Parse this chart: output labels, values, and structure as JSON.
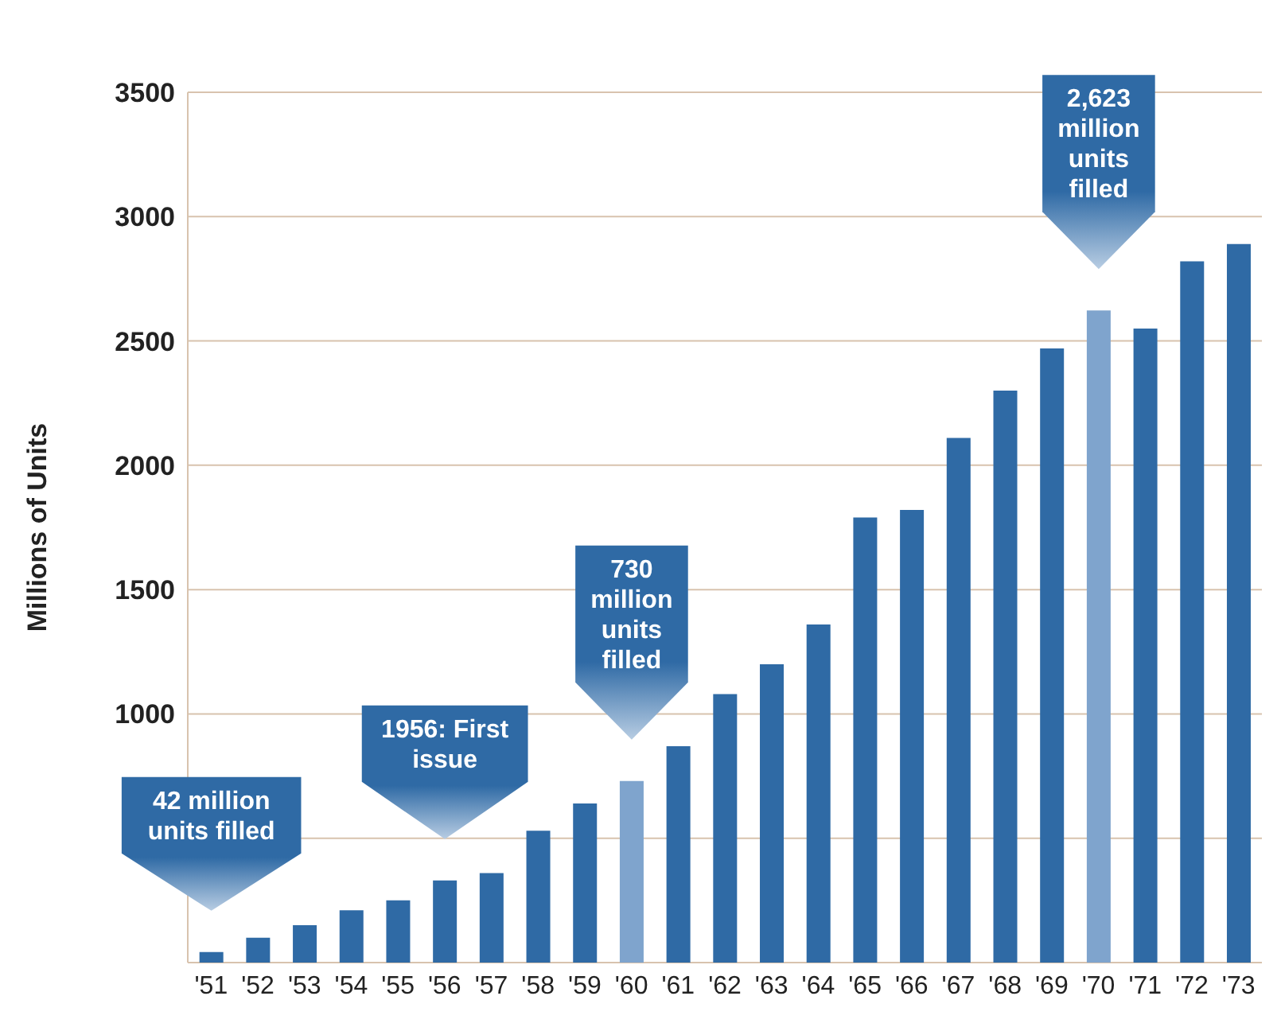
{
  "chart_data": {
    "type": "bar",
    "ylabel": "Millions of Units",
    "categories": [
      "'51",
      "'52",
      "'53",
      "'54",
      "'55",
      "'56",
      "'57",
      "'58",
      "'59",
      "'60",
      "'61",
      "'62",
      "'63",
      "'64",
      "'65",
      "'66",
      "'67",
      "'68",
      "'69",
      "'70",
      "'71",
      "'72",
      "'73"
    ],
    "values": [
      42,
      100,
      150,
      210,
      250,
      330,
      360,
      530,
      640,
      730,
      870,
      1080,
      1200,
      1360,
      1790,
      1820,
      2110,
      2300,
      2470,
      2623,
      2550,
      2820,
      2890
    ],
    "colors": [
      "#2f6aa5",
      "#2f6aa5",
      "#2f6aa5",
      "#2f6aa5",
      "#2f6aa5",
      "#2f6aa5",
      "#2f6aa5",
      "#2f6aa5",
      "#2f6aa5",
      "#7fa4cd",
      "#2f6aa5",
      "#2f6aa5",
      "#2f6aa5",
      "#2f6aa5",
      "#2f6aa5",
      "#2f6aa5",
      "#2f6aa5",
      "#2f6aa5",
      "#2f6aa5",
      "#7fa4cd",
      "#2f6aa5",
      "#2f6aa5",
      "#2f6aa5"
    ],
    "ylim": [
      0,
      3500
    ],
    "yticks": [
      {
        "value": 500,
        "label": null
      },
      1000,
      1500,
      2000,
      2500,
      3000,
      3500
    ],
    "grid": "y",
    "annotations": [
      "42 million\nunits filled",
      "1956: First\nissue",
      "730\nmillion\nunits\nfilled",
      "2,623\nmillion\nunits\nfilled"
    ]
  }
}
